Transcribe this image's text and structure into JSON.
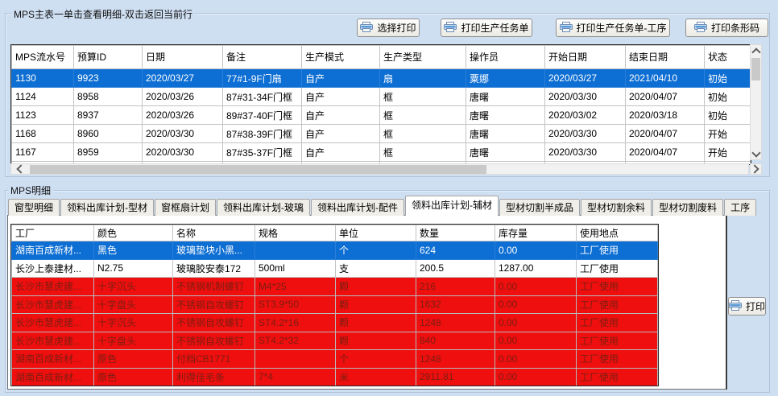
{
  "main_panel": {
    "title": "MPS主表一单击查看明细-双击返回当前行",
    "buttons": [
      {
        "label": "选择打印"
      },
      {
        "label": "打印生产任务单"
      },
      {
        "label": "打印生产任务单-工序"
      },
      {
        "label": "打印条形码"
      }
    ],
    "table": {
      "columns": [
        "MPS流水号",
        "预算ID",
        "日期",
        "备注",
        "生产模式",
        "生产类型",
        "操作员",
        "开始日期",
        "结束日期",
        "状态"
      ],
      "rows": [
        {
          "state": "selected",
          "cells": [
            "1130",
            "9923",
            "2020/03/27",
            "77#1-9F门扇",
            "自产",
            "扇",
            "粟娜",
            "2020/03/27",
            "2021/04/10",
            "初始"
          ]
        },
        {
          "state": "",
          "cells": [
            "1124",
            "8958",
            "2020/03/26",
            "87#31-34F门框",
            "自产",
            "框",
            "唐曙",
            "2020/03/30",
            "2020/04/07",
            "初始"
          ]
        },
        {
          "state": "",
          "cells": [
            "1123",
            "8937",
            "2020/03/26",
            "89#37-40F门框",
            "自产",
            "框",
            "唐曙",
            "2020/03/02",
            "2020/03/18",
            "初始"
          ]
        },
        {
          "state": "",
          "cells": [
            "1168",
            "8960",
            "2020/03/30",
            "87#38-39F门框",
            "自产",
            "框",
            "唐曙",
            "2020/03/30",
            "2020/04/07",
            "开始"
          ]
        },
        {
          "state": "",
          "cells": [
            "1167",
            "8959",
            "2020/03/30",
            "87#35-37F门框",
            "自产",
            "框",
            "唐曙",
            "2020/03/30",
            "2020/04/07",
            "开始"
          ]
        }
      ]
    }
  },
  "detail_panel": {
    "title": "MPS明细",
    "tabs": [
      "窗型明细",
      "领料出库计划-型材",
      "窗框扇计划",
      "领料出库计划-玻璃",
      "领料出库计划-配件",
      "领料出库计划-辅材",
      "型材切割半成品",
      "型材切割余料",
      "型材切割废料",
      "工序"
    ],
    "active_tab": "领料出库计划-辅材",
    "print_button_label": "打印",
    "table": {
      "columns": [
        "工厂",
        "颜色",
        "名称",
        "规格",
        "单位",
        "数量",
        "库存量",
        "使用地点"
      ],
      "rows": [
        {
          "state": "selected",
          "cells": [
            "湖南百成新材...",
            "黑色",
            "玻璃垫块小黑...",
            "",
            "个",
            "624",
            "0.00",
            "工厂使用"
          ]
        },
        {
          "state": "",
          "cells": [
            "长沙上泰建材...",
            "N2.75",
            "玻璃胶安泰172",
            "500ml",
            "支",
            "200.5",
            "1287.00",
            "工厂使用"
          ]
        },
        {
          "state": "alert",
          "cells": [
            "长沙市慧虎建...",
            "十字沉头",
            "不锈钢机制螺钉",
            "M4*25",
            "颗",
            "216",
            "0.00",
            "工厂使用"
          ]
        },
        {
          "state": "alert",
          "cells": [
            "长沙市慧虎建...",
            "十字盘头",
            "不锈钢自攻螺钉",
            "ST3.9*50",
            "颗",
            "1632",
            "0.00",
            "工厂使用"
          ]
        },
        {
          "state": "alert",
          "cells": [
            "长沙市慧虎建...",
            "十字沉头",
            "不锈钢自攻螺钉",
            "ST4.2*16",
            "颗",
            "1248",
            "0.00",
            "工厂使用"
          ]
        },
        {
          "state": "alert",
          "cells": [
            "长沙市慧虎建...",
            "十字盘头",
            "不锈钢自攻螺钉",
            "ST4.2*32",
            "颗",
            "840",
            "0.00",
            "工厂使用"
          ]
        },
        {
          "state": "alert",
          "cells": [
            "湖南百成新材...",
            "原色",
            "付档CB1771",
            "",
            "个",
            "1248",
            "0.00",
            "工厂使用"
          ]
        },
        {
          "state": "alert",
          "cells": [
            "湖南百成新材...",
            "原色",
            "利得佳毛条",
            "7*4",
            "米",
            "2911.81",
            "0.00",
            "工厂使用"
          ]
        }
      ]
    }
  },
  "colors": {
    "window_background": "#cfdff2",
    "selected_row": "#0d6ed3",
    "alert_row_background": "#ef0f0f",
    "alert_row_text": "#7c1d10"
  },
  "icons": {
    "printer": "printer-icon",
    "scroll_arrows": "chevron-icons"
  }
}
